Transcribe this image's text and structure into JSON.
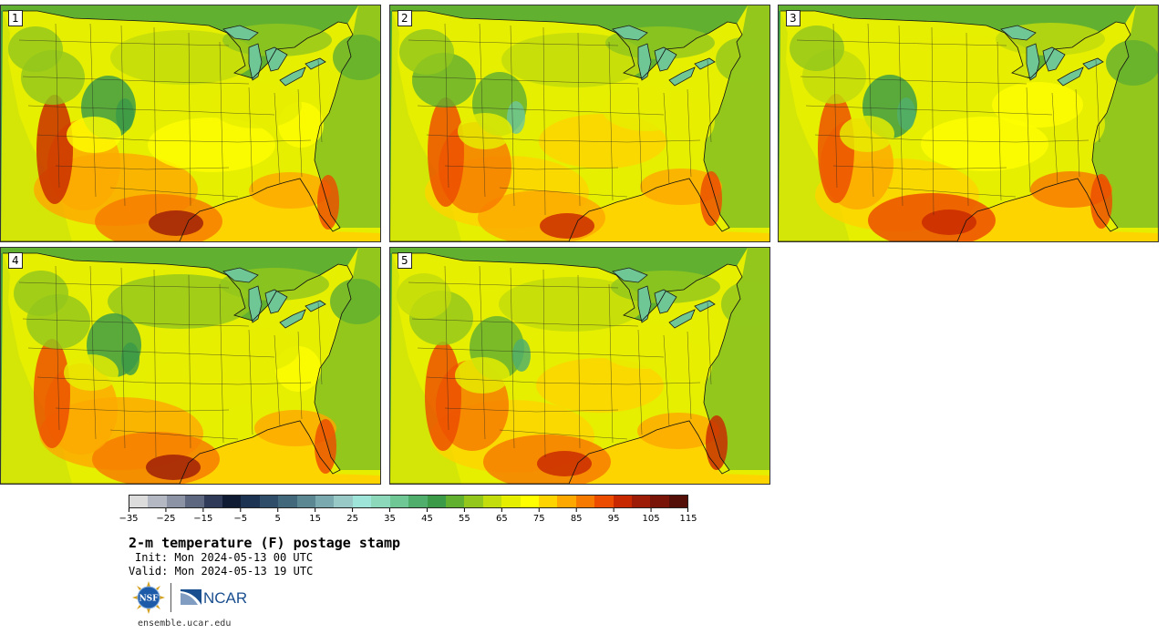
{
  "panels": [
    {
      "label": "1",
      "variant": 0
    },
    {
      "label": "2",
      "variant": 1
    },
    {
      "label": "3",
      "variant": 2
    },
    {
      "label": "4",
      "variant": 3
    },
    {
      "label": "5",
      "variant": 4
    }
  ],
  "colorbar": {
    "colors": [
      "#dcdcdc",
      "#b4b8c2",
      "#8c93a4",
      "#5d6780",
      "#2e3a57",
      "#0f1a33",
      "#1d3352",
      "#2f4d68",
      "#42687c",
      "#5b8792",
      "#7aaab0",
      "#98c9c6",
      "#9fe4d8",
      "#8cd8ba",
      "#6fc796",
      "#4fae6c",
      "#3a9a48",
      "#62b030",
      "#93c71c",
      "#c2dc0c",
      "#e6ee00",
      "#fefe00",
      "#fed400",
      "#fca800",
      "#f77a00",
      "#ec4c00",
      "#c82800",
      "#9c1c08",
      "#781508",
      "#541008"
    ],
    "ticks": [
      "−35",
      "−25",
      "−15",
      "−5",
      "5",
      "15",
      "25",
      "35",
      "45",
      "55",
      "65",
      "75",
      "85",
      "95",
      "105",
      "115"
    ]
  },
  "title": "2-m temperature (F) postage stamp",
  "init": "Init: Mon 2024-05-13 00 UTC",
  "valid": "Valid: Mon 2024-05-13 19 UTC",
  "logo": {
    "nsf_text": "NSF",
    "ncar_text": "NCAR"
  },
  "footer": "ensemble.ucar.edu"
}
